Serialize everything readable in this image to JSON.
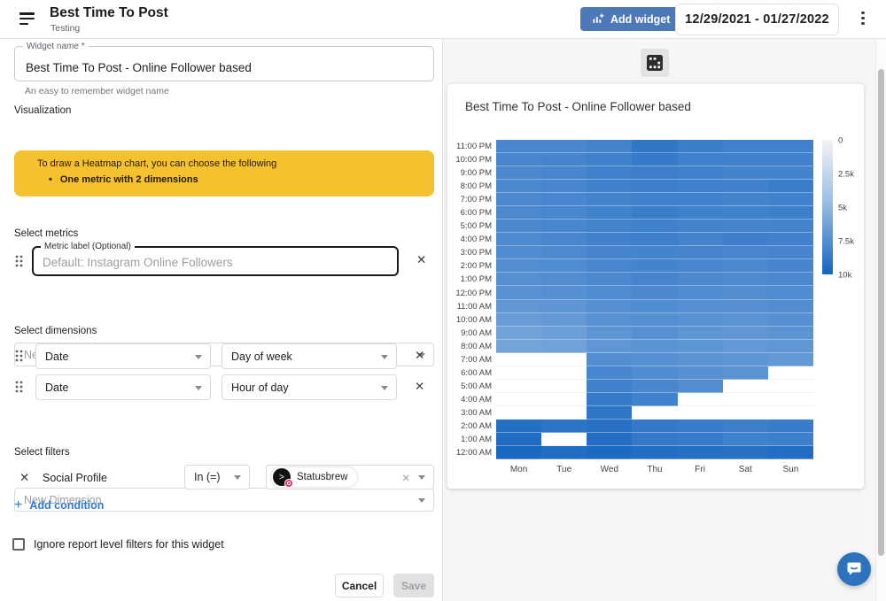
{
  "header": {
    "title": "Best Time To Post",
    "subtitle": "Testing",
    "add_widget_label": "Add widget",
    "date_range": "12/29/2021 - 01/27/2022"
  },
  "form": {
    "widget_name": {
      "label": "Widget name *",
      "value": "Best Time To Post - Online Follower based",
      "helper": "An easy to remember widget name"
    },
    "visualization": {
      "label": "Visualization",
      "value": "Heatmap chart"
    },
    "warning": {
      "line1": "To draw a Heatmap chart, you can choose the following",
      "bullet": "One metric with 2 dimensions"
    },
    "metrics": {
      "section_label": "Select metrics",
      "metric_label": "Metric label (Optional)",
      "metric_placeholder": "Default: Instagram Online Followers",
      "new_metric_placeholder": "New Metric"
    },
    "dimensions": {
      "section_label": "Select dimensions",
      "rows": [
        {
          "field": "Date",
          "sub": "Day of week"
        },
        {
          "field": "Date",
          "sub": "Hour of day"
        }
      ],
      "new_dimension_placeholder": "New Dimension"
    },
    "filters": {
      "section_label": "Select filters",
      "field": "Social Profile",
      "operator": "In (=)",
      "chip": "Statusbrew",
      "add_condition": "Add condition"
    },
    "ignore_checkbox_label": "Ignore report level filters for this widget",
    "cancel_label": "Cancel",
    "save_label": "Save"
  },
  "preview": {
    "card_title": "Best Time To Post - Online Follower based"
  },
  "icons": {
    "close": "✕",
    "plus": "+",
    "bullet": "•",
    "avatar_glyph": ">"
  },
  "colors": {
    "accent_blue": "#4d79b9",
    "link_blue": "#2e7ad6",
    "warning_yellow": "#f5c12e",
    "heatmap_max": "#1565c0",
    "chat_blue": "#2c72bd"
  },
  "chart_data": {
    "type": "heatmap",
    "title": "Best Time To Post - Online Follower based",
    "x_categories": [
      "Mon",
      "Tue",
      "Wed",
      "Thu",
      "Fri",
      "Sat",
      "Sun"
    ],
    "y_categories_top_to_bottom": [
      "11:00 PM",
      "10:00 PM",
      "9:00 PM",
      "8:00 PM",
      "7:00 PM",
      "6:00 PM",
      "5:00 PM",
      "4:00 PM",
      "3:00 PM",
      "2:00 PM",
      "1:00 PM",
      "12:00 PM",
      "11:00 AM",
      "10:00 AM",
      "9:00 AM",
      "8:00 AM",
      "7:00 AM",
      "6:00 AM",
      "5:00 AM",
      "4:00 AM",
      "3:00 AM",
      "2:00 AM",
      "1:00 AM",
      "12:00 AM"
    ],
    "legend_ticks": [
      "0",
      "2.5k",
      "5k",
      "7.5k",
      "10k"
    ],
    "value_range": [
      0,
      10000
    ],
    "legend_position": "right",
    "colors": {
      "min": "#ffffff",
      "max": "#1565c0"
    },
    "values_rows_top_to_bottom": [
      [
        7800,
        7800,
        8000,
        8800,
        8400,
        8200,
        8200
      ],
      [
        7800,
        7900,
        8200,
        8600,
        8200,
        8200,
        8100
      ],
      [
        7700,
        7800,
        8100,
        8300,
        8200,
        8000,
        8000
      ],
      [
        7700,
        7800,
        8100,
        8300,
        8200,
        8100,
        8400
      ],
      [
        7700,
        7800,
        8000,
        8200,
        8100,
        8000,
        8100
      ],
      [
        7700,
        7800,
        8100,
        8400,
        8200,
        8100,
        8300
      ],
      [
        7700,
        7800,
        8000,
        8200,
        8000,
        7900,
        8000
      ],
      [
        7600,
        7800,
        8100,
        8300,
        8000,
        8300,
        8100
      ],
      [
        7500,
        7600,
        7900,
        8000,
        7900,
        7800,
        7900
      ],
      [
        7400,
        7500,
        7800,
        8000,
        7800,
        7700,
        7900
      ],
      [
        7300,
        7400,
        7700,
        7900,
        7700,
        7600,
        7700
      ],
      [
        7100,
        7200,
        7500,
        7700,
        7500,
        7400,
        7500
      ],
      [
        6800,
        6900,
        7300,
        7500,
        7300,
        7200,
        7400
      ],
      [
        6400,
        6600,
        7100,
        7300,
        7100,
        7000,
        7200
      ],
      [
        6100,
        6300,
        6900,
        7200,
        6900,
        6800,
        7000
      ],
      [
        5900,
        6100,
        6800,
        7000,
        6900,
        6700,
        6800
      ],
      [
        0,
        0,
        7400,
        7200,
        7000,
        6900,
        6700
      ],
      [
        0,
        0,
        7800,
        7500,
        7200,
        7000,
        0
      ],
      [
        0,
        0,
        8200,
        7800,
        7400,
        0,
        0
      ],
      [
        0,
        0,
        8600,
        8100,
        0,
        0,
        0
      ],
      [
        0,
        0,
        8900,
        0,
        0,
        0,
        0
      ],
      [
        9300,
        9000,
        9200,
        8700,
        8500,
        8300,
        8500
      ],
      [
        9500,
        0,
        9400,
        8700,
        8500,
        8100,
        8300
      ],
      [
        9800,
        9500,
        9700,
        9400,
        9300,
        9200,
        9400
      ]
    ]
  }
}
